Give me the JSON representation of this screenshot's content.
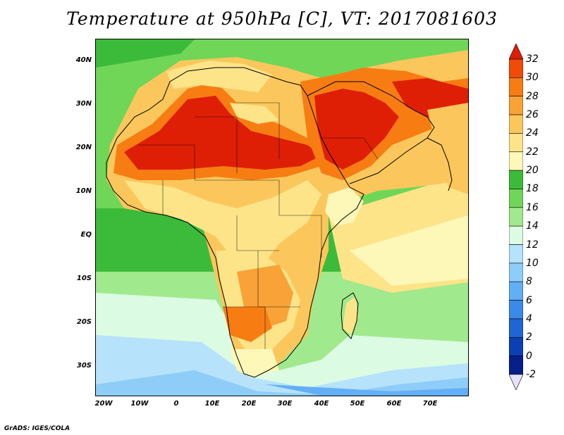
{
  "title": "Temperature at 950hPa [C], VT: 2017081603",
  "footer": "GrADS: IGES/COLA",
  "map": {
    "lon_range": [
      -23,
      80
    ],
    "lat_range": [
      -37,
      46
    ],
    "lat_labels": [
      "40N",
      "30N",
      "20N",
      "10N",
      "EQ",
      "10S",
      "20S",
      "30S"
    ],
    "lon_labels": [
      "20W",
      "10W",
      "0",
      "10E",
      "20E",
      "30E",
      "40E",
      "50E",
      "60E",
      "70E"
    ]
  },
  "colorbar": {
    "levels": [
      "32",
      "30",
      "28",
      "26",
      "24",
      "22",
      "20",
      "18",
      "16",
      "14",
      "12",
      "10",
      "8",
      "6",
      "4",
      "2",
      "0",
      "-2"
    ],
    "colors": [
      "#de1f06",
      "#f24a08",
      "#f77d12",
      "#f9a237",
      "#fbc75c",
      "#fde489",
      "#fdf7b8",
      "#3cbb3a",
      "#6fd657",
      "#a0e98c",
      "#dcfbe3",
      "#b6e3fb",
      "#8fcdf9",
      "#63aff7",
      "#3a8be9",
      "#1f65d6",
      "#0c3fb6",
      "#071f89",
      "#e6e2fb"
    ]
  }
}
